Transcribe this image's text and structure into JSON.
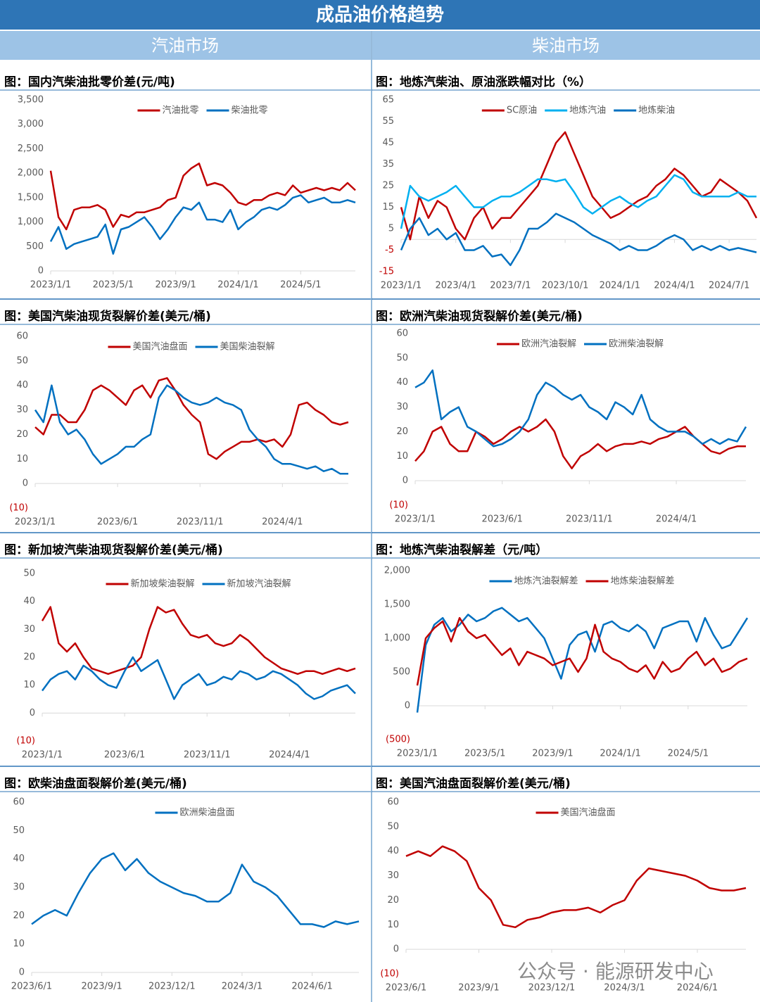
{
  "header": {
    "title": "成品油价格趋势",
    "left": "汽油市场",
    "right": "柴油市场"
  },
  "watermark": "公众号 · 能源研发中心",
  "chart_data": [
    {
      "type": "line",
      "title": "图：国内汽柴油批零价差(元/吨)",
      "categories": [
        "2023/1/1",
        null,
        null,
        null,
        null,
        null,
        null,
        null,
        "2023/5/1",
        null,
        null,
        null,
        null,
        null,
        null,
        null,
        "2023/9/1",
        null,
        null,
        null,
        null,
        null,
        null,
        null,
        "2024/1/1",
        null,
        null,
        null,
        null,
        null,
        null,
        null,
        "2024/5/1",
        null,
        null,
        null,
        null,
        null,
        null,
        null
      ],
      "ylim": [
        0,
        3500
      ],
      "yticks": [
        0,
        500,
        {
          "value": 1000,
          "label": "1,000"
        },
        {
          "value": 1500,
          "label": "1,500"
        },
        {
          "value": 2000,
          "label": "2,000"
        },
        {
          "value": 2500,
          "label": "2,500"
        },
        {
          "value": 3000,
          "label": "3,000"
        },
        {
          "value": 3500,
          "label": "3,500"
        }
      ],
      "series": [
        {
          "name": "汽油批零",
          "color": "#c00000",
          "values": [
            2050,
            1100,
            850,
            1250,
            1300,
            1300,
            1350,
            1250,
            900,
            1150,
            1100,
            1200,
            1200,
            1250,
            1300,
            1450,
            1500,
            1950,
            2100,
            2200,
            1750,
            1800,
            1750,
            1600,
            1400,
            1350,
            1450,
            1450,
            1550,
            1600,
            1550,
            1750,
            1600,
            1650,
            1700,
            1650,
            1700,
            1650,
            1800,
            1650
          ]
        },
        {
          "name": "柴油批零",
          "color": "#0070c0",
          "values": [
            600,
            900,
            450,
            550,
            600,
            650,
            700,
            950,
            350,
            850,
            900,
            1000,
            1100,
            900,
            650,
            850,
            1100,
            1300,
            1250,
            1400,
            1050,
            1050,
            1000,
            1250,
            850,
            1000,
            1100,
            1250,
            1300,
            1250,
            1350,
            1500,
            1550,
            1400,
            1450,
            1500,
            1400,
            1400,
            1450,
            1400
          ]
        }
      ]
    },
    {
      "type": "line",
      "title": "图：地炼汽柴油、原油涨跌幅对比（%）",
      "categories": [
        "2023/1/1",
        null,
        null,
        null,
        null,
        null,
        "2023/4/1",
        null,
        null,
        null,
        null,
        null,
        "2023/7/1",
        null,
        null,
        null,
        null,
        null,
        "2023/10/1",
        null,
        null,
        null,
        null,
        null,
        "2024/1/1",
        null,
        null,
        null,
        null,
        null,
        "2024/4/1",
        null,
        null,
        null,
        null,
        null,
        "2024/7/1",
        null,
        null,
        null
      ],
      "ylim": [
        -15,
        65
      ],
      "yticks": [
        -15,
        -5,
        5,
        15,
        25,
        35,
        45,
        55,
        65
      ],
      "series": [
        {
          "name": "SC原油",
          "color": "#c00000",
          "values": [
            15,
            0,
            20,
            10,
            18,
            15,
            5,
            0,
            10,
            15,
            5,
            10,
            10,
            15,
            20,
            25,
            35,
            45,
            50,
            40,
            30,
            20,
            15,
            10,
            12,
            15,
            18,
            20,
            25,
            28,
            33,
            30,
            25,
            20,
            22,
            28,
            25,
            22,
            18,
            10
          ]
        },
        {
          "name": "地炼汽油",
          "color": "#00b0f0",
          "values": [
            5,
            25,
            20,
            18,
            20,
            22,
            25,
            20,
            15,
            15,
            18,
            20,
            20,
            22,
            25,
            28,
            28,
            27,
            28,
            22,
            15,
            12,
            15,
            18,
            20,
            17,
            15,
            18,
            20,
            25,
            30,
            28,
            22,
            20,
            20,
            20,
            20,
            22,
            20,
            20
          ]
        },
        {
          "name": "地炼柴油",
          "color": "#0070c0",
          "values": [
            -5,
            5,
            10,
            2,
            5,
            0,
            3,
            -5,
            -5,
            -3,
            -8,
            -7,
            -12,
            -5,
            5,
            5,
            8,
            12,
            10,
            8,
            5,
            2,
            0,
            -2,
            -5,
            -3,
            -5,
            -5,
            -3,
            0,
            2,
            0,
            -5,
            -3,
            -5,
            -3,
            -5,
            -4,
            -5,
            -6
          ]
        }
      ]
    },
    {
      "type": "line",
      "title": "图：美国汽柴油现货裂解价差(美元/桶)",
      "categories": [
        "2023/1/1",
        null,
        null,
        null,
        null,
        null,
        null,
        null,
        null,
        null,
        "2023/6/1",
        null,
        null,
        null,
        null,
        null,
        null,
        null,
        null,
        null,
        "2023/11/1",
        null,
        null,
        null,
        null,
        null,
        null,
        null,
        null,
        null,
        "2024/4/1",
        null,
        null,
        null,
        null,
        null,
        null,
        null,
        null
      ],
      "ylim": [
        -10,
        60
      ],
      "yticks": [
        {
          "value": -10,
          "label": "(10)"
        },
        0,
        10,
        20,
        30,
        40,
        50,
        60
      ],
      "series": [
        {
          "name": "美国汽油盘面",
          "color": "#c00000",
          "values": [
            23,
            20,
            28,
            28,
            25,
            25,
            30,
            38,
            40,
            38,
            35,
            32,
            38,
            40,
            35,
            42,
            43,
            38,
            32,
            28,
            25,
            12,
            10,
            13,
            15,
            17,
            17,
            18,
            17,
            18,
            15,
            20,
            32,
            33,
            30,
            28,
            25,
            24,
            25
          ]
        },
        {
          "name": "美国柴油裂解",
          "color": "#0070c0",
          "values": [
            30,
            25,
            40,
            25,
            20,
            22,
            18,
            12,
            8,
            10,
            12,
            15,
            15,
            18,
            20,
            35,
            40,
            38,
            35,
            33,
            32,
            33,
            35,
            33,
            32,
            30,
            22,
            18,
            15,
            10,
            8,
            8,
            7,
            6,
            7,
            5,
            6,
            4,
            4
          ]
        }
      ]
    },
    {
      "type": "line",
      "title": "图：欧洲汽柴油现货裂解价差(美元/桶)",
      "categories": [
        "2023/1/1",
        null,
        null,
        null,
        null,
        null,
        null,
        null,
        null,
        null,
        "2023/6/1",
        null,
        null,
        null,
        null,
        null,
        null,
        null,
        null,
        null,
        "2023/11/1",
        null,
        null,
        null,
        null,
        null,
        null,
        null,
        null,
        null,
        "2024/4/1",
        null,
        null,
        null,
        null,
        null,
        null,
        null,
        null
      ],
      "ylim": [
        -10,
        60
      ],
      "yticks": [
        {
          "value": -10,
          "label": "(10)"
        },
        0,
        10,
        20,
        30,
        40,
        50,
        60
      ],
      "series": [
        {
          "name": "欧洲汽油裂解",
          "color": "#c00000",
          "values": [
            8,
            12,
            20,
            22,
            15,
            12,
            12,
            20,
            18,
            15,
            17,
            20,
            22,
            20,
            22,
            25,
            20,
            10,
            5,
            10,
            12,
            15,
            12,
            14,
            15,
            15,
            16,
            15,
            17,
            18,
            20,
            22,
            18,
            15,
            12,
            11,
            13,
            14,
            14
          ]
        },
        {
          "name": "欧洲柴油裂解",
          "color": "#0070c0",
          "values": [
            38,
            40,
            45,
            25,
            28,
            30,
            22,
            20,
            17,
            14,
            15,
            17,
            20,
            25,
            35,
            40,
            38,
            35,
            33,
            35,
            30,
            28,
            25,
            32,
            30,
            27,
            35,
            25,
            22,
            20,
            20,
            20,
            18,
            15,
            17,
            15,
            17,
            16,
            22
          ]
        }
      ]
    },
    {
      "type": "line",
      "title": "图：新加坡汽柴油现货裂解价差(美元/桶)",
      "categories": [
        "2023/1/1",
        null,
        null,
        null,
        null,
        null,
        null,
        null,
        null,
        null,
        "2023/6/1",
        null,
        null,
        null,
        null,
        null,
        null,
        null,
        null,
        null,
        "2023/11/1",
        null,
        null,
        null,
        null,
        null,
        null,
        null,
        null,
        null,
        "2024/4/1",
        null,
        null,
        null,
        null,
        null,
        null,
        null,
        null
      ],
      "ylim": [
        -10,
        50
      ],
      "yticks": [
        {
          "value": -10,
          "label": "(10)"
        },
        0,
        10,
        20,
        30,
        40,
        50
      ],
      "series": [
        {
          "name": "新加坡柴油裂解",
          "color": "#c00000",
          "values": [
            33,
            38,
            25,
            22,
            25,
            20,
            16,
            15,
            14,
            15,
            16,
            17,
            20,
            30,
            38,
            36,
            37,
            32,
            28,
            27,
            28,
            25,
            24,
            25,
            28,
            26,
            23,
            20,
            18,
            16,
            15,
            14,
            15,
            15,
            14,
            15,
            16,
            15,
            16
          ]
        },
        {
          "name": "新加坡汽油裂解",
          "color": "#0070c0",
          "values": [
            8,
            12,
            14,
            15,
            12,
            17,
            15,
            12,
            10,
            9,
            15,
            20,
            15,
            17,
            19,
            12,
            5,
            10,
            12,
            14,
            10,
            11,
            13,
            12,
            15,
            14,
            12,
            13,
            15,
            14,
            12,
            10,
            7,
            5,
            6,
            8,
            9,
            10,
            7
          ]
        }
      ]
    },
    {
      "type": "line",
      "title": "图：地炼汽柴油裂解差（元/吨）",
      "categories": [
        "2023/1/1",
        null,
        null,
        null,
        null,
        null,
        null,
        null,
        "2023/5/1",
        null,
        null,
        null,
        null,
        null,
        null,
        null,
        "2023/9/1",
        null,
        null,
        null,
        null,
        null,
        null,
        null,
        "2024/1/1",
        null,
        null,
        null,
        null,
        null,
        null,
        null,
        "2024/5/1",
        null,
        null,
        null,
        null,
        null,
        null,
        null
      ],
      "ylim": [
        -500,
        2000
      ],
      "yticks": [
        {
          "value": -500,
          "label": "(500)"
        },
        0,
        500,
        {
          "value": 1000,
          "label": "1,000"
        },
        {
          "value": 1500,
          "label": "1,500"
        },
        {
          "value": 2000,
          "label": "2,000"
        }
      ],
      "series": [
        {
          "name": "地炼汽油裂解差",
          "color": "#0070c0",
          "values": [
            -100,
            900,
            1200,
            1300,
            1100,
            1200,
            1350,
            1250,
            1300,
            1400,
            1450,
            1350,
            1250,
            1300,
            1150,
            1000,
            700,
            400,
            900,
            1050,
            1100,
            800,
            1200,
            1250,
            1150,
            1100,
            1200,
            1100,
            850,
            1150,
            1200,
            1250,
            1250,
            950,
            1300,
            1050,
            850,
            900,
            1100,
            1300
          ]
        },
        {
          "name": "地炼柴油裂解差",
          "color": "#c00000",
          "values": [
            300,
            1000,
            1150,
            1250,
            950,
            1300,
            1100,
            1000,
            1050,
            900,
            750,
            850,
            600,
            800,
            750,
            700,
            600,
            650,
            700,
            500,
            700,
            1200,
            800,
            700,
            650,
            550,
            500,
            600,
            400,
            650,
            500,
            550,
            700,
            800,
            600,
            700,
            500,
            550,
            650,
            700
          ]
        }
      ]
    },
    {
      "type": "line",
      "title": "图：欧柴油盘面裂解价差(美元/桶)",
      "categories": [
        "2023/6/1",
        null,
        null,
        null,
        null,
        null,
        "2023/9/1",
        null,
        null,
        null,
        null,
        null,
        "2023/12/1",
        null,
        null,
        null,
        null,
        null,
        "2024/3/1",
        null,
        null,
        null,
        null,
        null,
        "2024/6/1",
        null,
        null,
        null,
        null
      ],
      "ylim": [
        0,
        60
      ],
      "yticks": [
        0,
        10,
        20,
        30,
        40,
        50,
        60
      ],
      "series": [
        {
          "name": "欧洲柴油盘面",
          "color": "#0070c0",
          "values": [
            17,
            20,
            22,
            20,
            28,
            35,
            40,
            42,
            36,
            40,
            35,
            32,
            30,
            28,
            27,
            25,
            25,
            28,
            38,
            32,
            30,
            27,
            22,
            17,
            17,
            16,
            18,
            17,
            18
          ]
        }
      ]
    },
    {
      "type": "line",
      "title": "图：美国汽油盘面裂解价差(美元/桶)",
      "categories": [
        "2023/6/1",
        null,
        null,
        null,
        null,
        null,
        "2023/9/1",
        null,
        null,
        null,
        null,
        null,
        "2023/12/1",
        null,
        null,
        null,
        null,
        null,
        "2024/3/1",
        null,
        null,
        null,
        null,
        null,
        "2024/6/1",
        null,
        null,
        null,
        null
      ],
      "ylim": [
        -10,
        60
      ],
      "yticks": [
        {
          "value": -10,
          "label": "(10)"
        },
        0,
        10,
        20,
        30,
        40,
        50,
        60
      ],
      "series": [
        {
          "name": "美国汽油盘面",
          "color": "#c00000",
          "values": [
            38,
            40,
            38,
            42,
            40,
            36,
            25,
            20,
            10,
            9,
            12,
            13,
            15,
            16,
            16,
            17,
            15,
            18,
            20,
            28,
            33,
            32,
            31,
            30,
            28,
            25,
            24,
            24,
            25
          ]
        }
      ]
    }
  ]
}
